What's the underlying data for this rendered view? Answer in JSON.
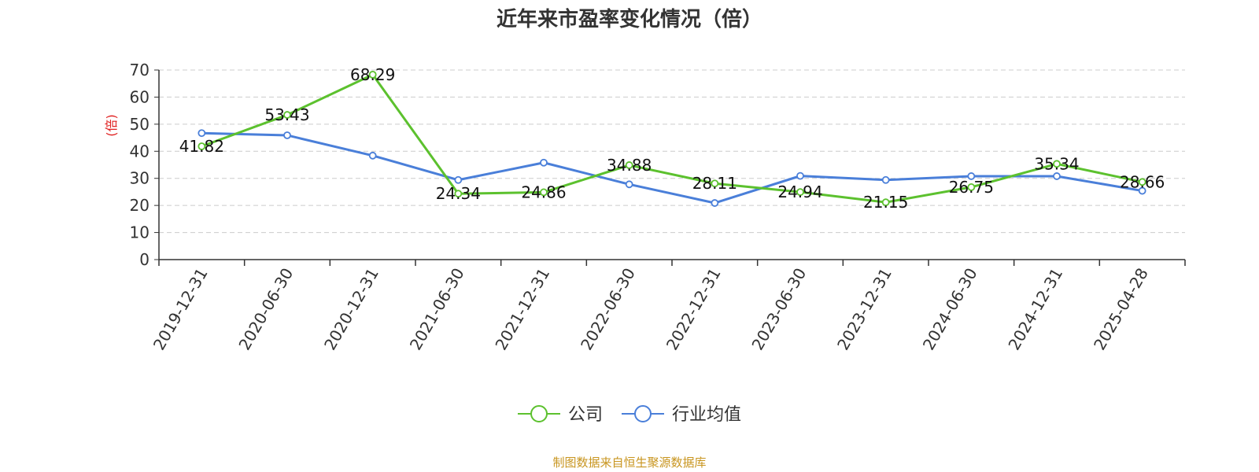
{
  "chart_data": {
    "type": "line",
    "title": "近年来市盈率变化情况（倍）",
    "ylabel": "(倍)",
    "ylim": [
      0,
      70
    ],
    "yticks": [
      0,
      10,
      20,
      30,
      40,
      50,
      60,
      70
    ],
    "grid": true,
    "legend_position": "bottom-center",
    "categories": [
      "2019-12-31",
      "2020-06-30",
      "2020-12-31",
      "2021-06-30",
      "2021-12-31",
      "2022-06-30",
      "2022-12-31",
      "2023-06-30",
      "2023-12-31",
      "2024-06-30",
      "2024-12-31",
      "2025-04-28"
    ],
    "series": [
      {
        "name": "公司",
        "color": "#5cc12e",
        "values": [
          41.82,
          53.43,
          68.29,
          24.34,
          24.86,
          34.88,
          28.11,
          24.94,
          21.15,
          26.75,
          35.34,
          28.66
        ],
        "labels": [
          "41.82",
          "53.43",
          "68.29",
          "24.34",
          "24.86",
          "34.88",
          "28.11",
          "24.94",
          "21.15",
          "26.75",
          "35.34",
          "28.66"
        ]
      },
      {
        "name": "行业均值",
        "color": "#4a7fd9",
        "values": [
          46.7,
          45.9,
          38.4,
          29.4,
          35.8,
          27.8,
          20.9,
          30.9,
          29.4,
          30.8,
          30.8,
          25.4
        ]
      }
    ]
  },
  "source": "制图数据来自恒生聚源数据库"
}
